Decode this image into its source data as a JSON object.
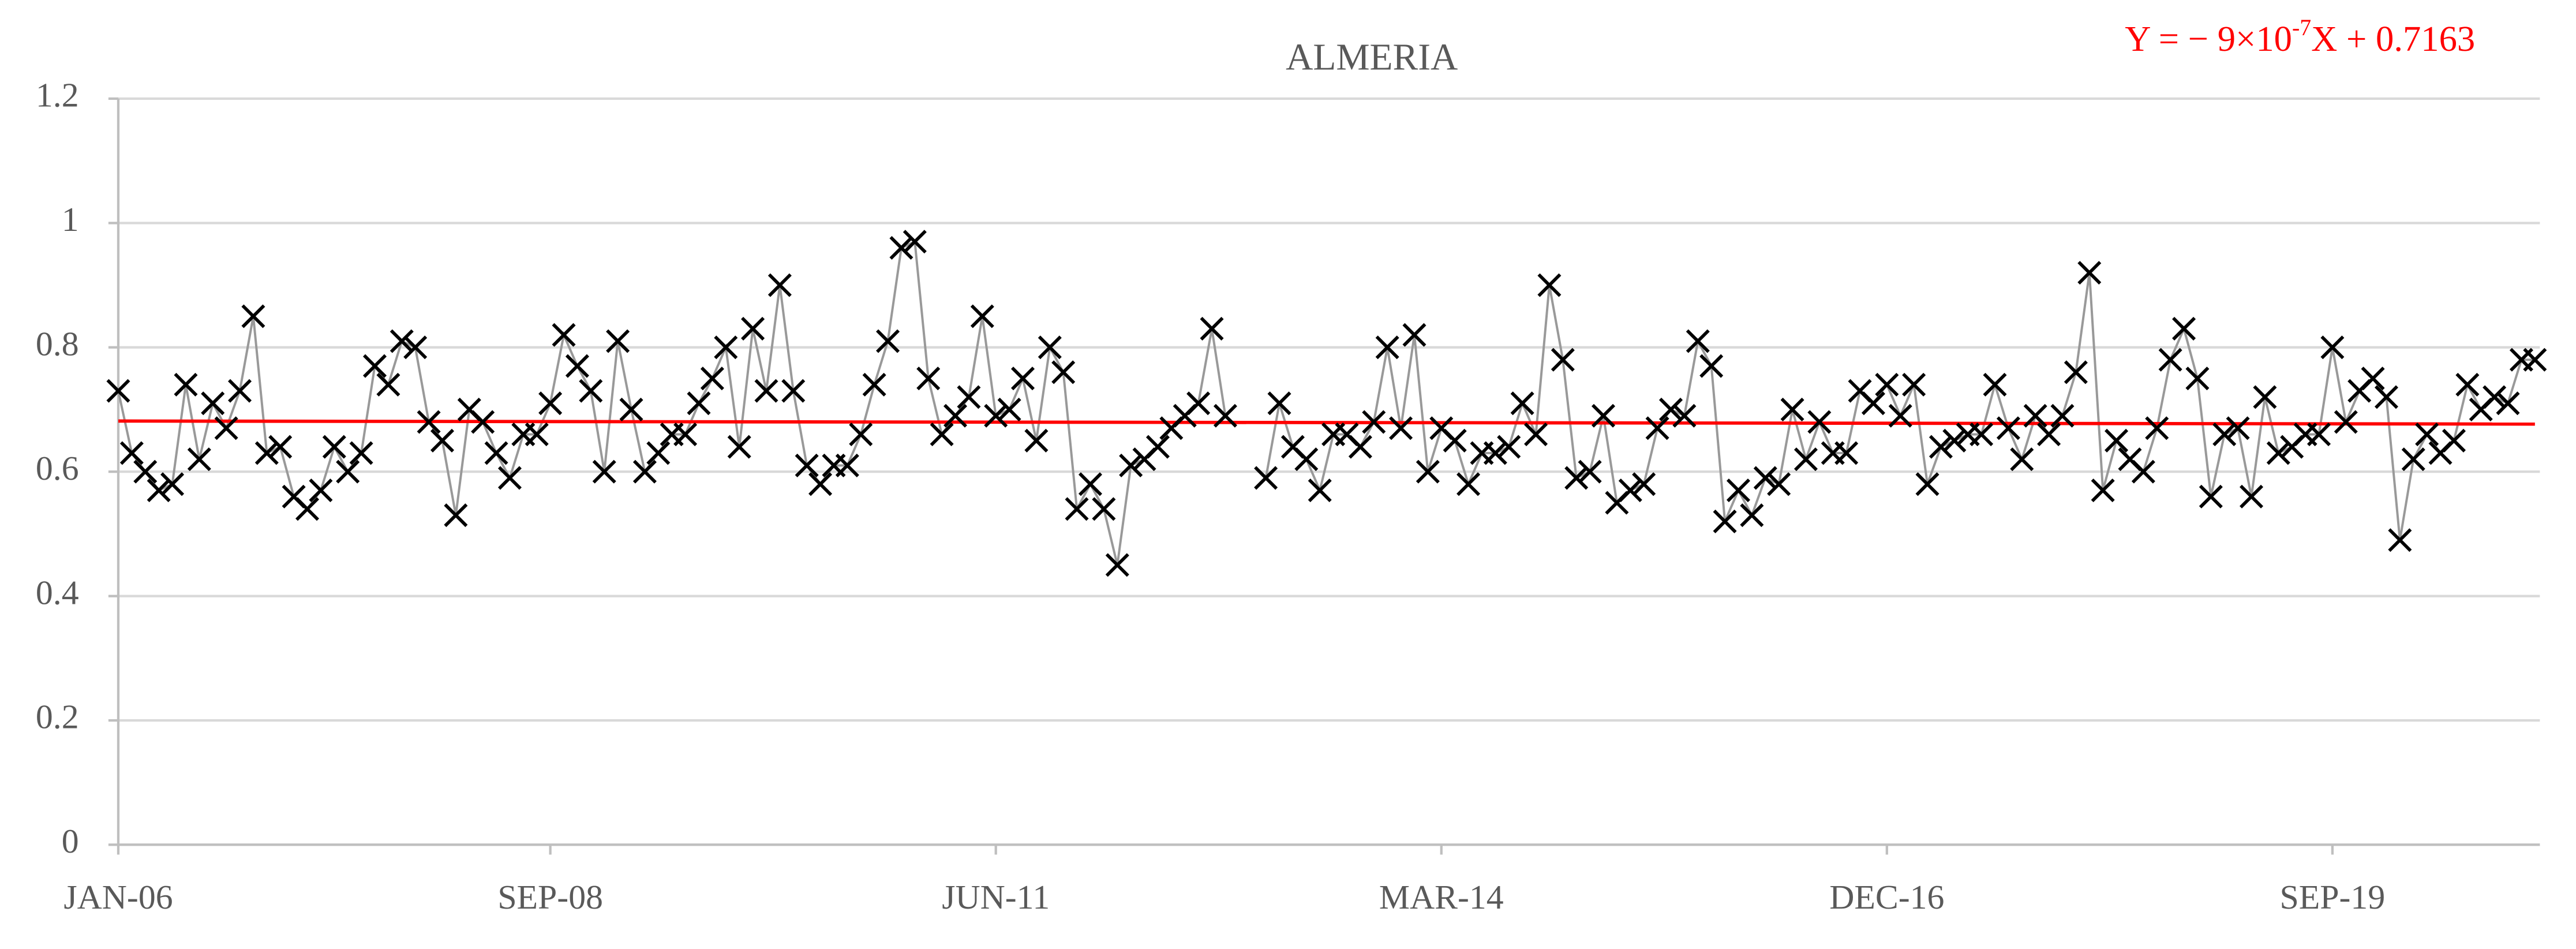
{
  "chart_data": {
    "type": "line",
    "title": "ALMERIA",
    "categories": [
      "JAN-06",
      null,
      null,
      null,
      null,
      null,
      null,
      null,
      null,
      null,
      null,
      null,
      null,
      null,
      null,
      null,
      null,
      null,
      null,
      null,
      null,
      null,
      null,
      null,
      null,
      null,
      null,
      null,
      null,
      null,
      null,
      null,
      "SEP-08",
      null,
      null,
      null,
      null,
      null,
      null,
      null,
      null,
      null,
      null,
      null,
      null,
      null,
      null,
      null,
      null,
      null,
      null,
      null,
      null,
      null,
      null,
      null,
      null,
      null,
      null,
      null,
      null,
      null,
      null,
      null,
      null,
      "JUN-11",
      null,
      null,
      null,
      null,
      null,
      null,
      null,
      null,
      null,
      null,
      null,
      null,
      null,
      null,
      null,
      null,
      null,
      null,
      null,
      null,
      null,
      null,
      null,
      null,
      null,
      null,
      null,
      null,
      null,
      null,
      null,
      null,
      "MAR-14",
      null,
      null,
      null,
      null,
      null,
      null,
      null,
      null,
      null,
      null,
      null,
      null,
      null,
      null,
      null,
      null,
      null,
      null,
      null,
      null,
      null,
      null,
      null,
      null,
      null,
      null,
      null,
      null,
      null,
      null,
      null,
      null,
      "DEC-16",
      null,
      null,
      null,
      null,
      null,
      null,
      null,
      null,
      null,
      null,
      null,
      null,
      null,
      null,
      null,
      null,
      null,
      null,
      null,
      null,
      null,
      null,
      null,
      null,
      null,
      null,
      null,
      null,
      null,
      null,
      null,
      null,
      "SEP-19",
      null,
      null,
      null,
      null,
      null,
      null,
      null,
      null,
      null,
      null,
      null,
      null,
      null,
      null,
      null
    ],
    "series": [
      {
        "name": null,
        "color": "#999999",
        "marker_color": "#000000",
        "values": [
          0.73,
          0.63,
          0.6,
          0.57,
          0.58,
          0.74,
          0.62,
          0.71,
          0.67,
          0.73,
          0.85,
          0.63,
          0.64,
          0.56,
          0.54,
          0.57,
          0.64,
          0.6,
          0.63,
          0.77,
          0.74,
          0.81,
          0.8,
          0.68,
          0.65,
          0.53,
          0.7,
          0.68,
          0.63,
          0.59,
          0.66,
          0.66,
          0.71,
          0.82,
          0.77,
          0.73,
          0.6,
          0.81,
          0.7,
          0.6,
          0.63,
          0.66,
          0.66,
          0.71,
          0.75,
          0.8,
          0.64,
          0.83,
          0.73,
          0.9,
          0.73,
          0.61,
          0.58,
          0.61,
          0.61,
          0.66,
          0.74,
          0.81,
          0.96,
          0.97,
          0.75,
          0.66,
          0.69,
          0.72,
          0.85,
          0.69,
          0.7,
          0.75,
          0.65,
          0.8,
          0.76,
          0.54,
          0.58,
          0.54,
          0.45,
          0.61,
          0.62,
          0.64,
          0.67,
          0.69,
          0.71,
          0.83,
          0.69,
          null,
          null,
          0.59,
          0.71,
          0.64,
          0.62,
          0.57,
          0.66,
          0.66,
          0.64,
          0.68,
          0.8,
          0.67,
          0.82,
          0.6,
          0.67,
          0.65,
          0.58,
          0.63,
          0.63,
          0.64,
          0.71,
          0.66,
          0.9,
          0.78,
          0.59,
          0.6,
          0.69,
          0.55,
          0.57,
          0.58,
          0.67,
          0.7,
          0.69,
          0.81,
          0.77,
          0.52,
          0.57,
          0.53,
          0.59,
          0.58,
          0.7,
          0.62,
          0.68,
          0.63,
          0.63,
          0.73,
          0.71,
          0.74,
          0.69,
          0.74,
          0.58,
          0.64,
          0.65,
          0.66,
          0.66,
          0.74,
          0.67,
          0.62,
          0.69,
          0.66,
          0.69,
          0.76,
          0.92,
          0.57,
          0.65,
          0.62,
          0.6,
          0.67,
          0.78,
          0.83,
          0.75,
          0.56,
          0.66,
          0.67,
          0.56,
          0.72,
          0.63,
          0.64,
          0.66,
          0.66,
          0.8,
          0.68,
          0.73,
          0.75,
          0.72,
          0.49,
          0.62,
          0.66,
          0.63,
          0.65,
          0.74,
          0.7,
          0.72,
          0.71,
          0.78,
          0.78
        ]
      }
    ],
    "trend": {
      "label": [
        "Y = − 9×10",
        "-7",
        "X + 0.7163"
      ],
      "color": "#ff0000",
      "values": [
        0.6815,
        0.6766
      ]
    },
    "ylim": [
      0,
      1.2
    ],
    "yticks": [
      0,
      0.2,
      0.4,
      0.6,
      0.8,
      1,
      1.2
    ],
    "grid": true
  }
}
